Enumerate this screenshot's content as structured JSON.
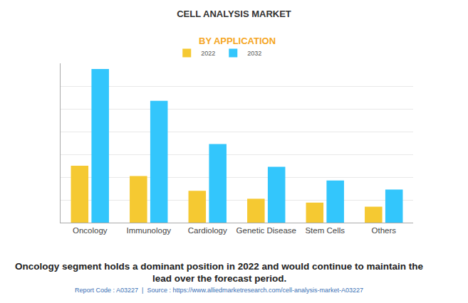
{
  "chart_data": {
    "type": "bar",
    "title": "CELL ANALYSIS MARKET",
    "subtitle": "BY APPLICATION",
    "categories": [
      "Oncology",
      "Immunology",
      "Cardiology",
      "Genetic Disease",
      "Stem Cells",
      "Others"
    ],
    "series": [
      {
        "name": "2022",
        "color": "#f5c932",
        "values": [
          2.5,
          2.05,
          1.4,
          1.05,
          0.88,
          0.7
        ]
      },
      {
        "name": "2032",
        "color": "#33c6fc",
        "values": [
          6.75,
          5.35,
          3.45,
          2.45,
          1.85,
          1.45
        ]
      }
    ],
    "ylim": [
      0,
      7
    ],
    "yticks": [
      0,
      1,
      2,
      3,
      4,
      5,
      6,
      7
    ],
    "grid": true,
    "legend": "top",
    "tick_labels": "x",
    "annotations": [
      "Oncology segment holds a dominant position in 2022 and would continue to maintain the",
      "lead over the forecast period.",
      "Report Code : A03227  |  Source : https://www.alliedmarketresearch.com/cell-analysis-market-A03227"
    ]
  }
}
